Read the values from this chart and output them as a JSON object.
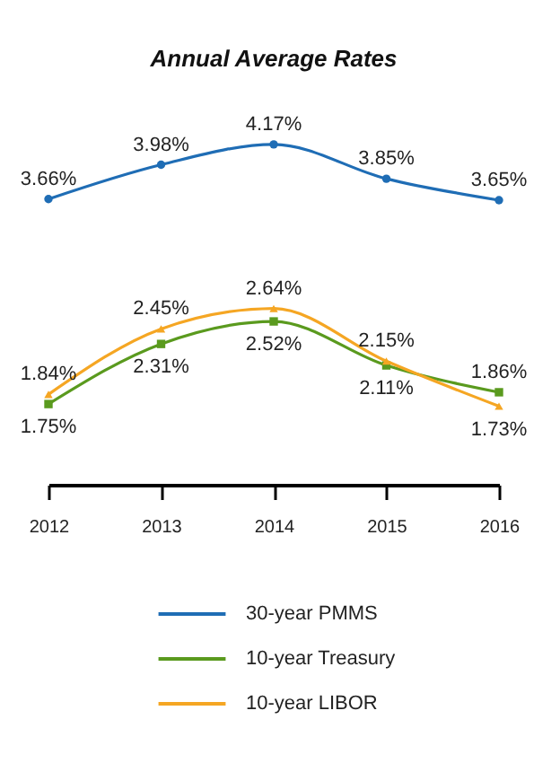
{
  "chart_data": {
    "type": "line",
    "title": "Annual Average Rates",
    "categories": [
      "2012",
      "2013",
      "2014",
      "2015",
      "2016"
    ],
    "series": [
      {
        "name": "30-year PMMS",
        "color": "#1f6db5",
        "marker": "circle",
        "values": [
          3.66,
          3.98,
          4.17,
          3.85,
          3.65
        ],
        "value_labels": [
          "3.66%",
          "3.98%",
          "4.17%",
          "3.85%",
          "3.65%"
        ]
      },
      {
        "name": "10-year Treasury",
        "color": "#5a9a1e",
        "marker": "square",
        "values": [
          1.75,
          2.31,
          2.52,
          2.11,
          1.86
        ],
        "value_labels": [
          "1.75%",
          "2.31%",
          "2.52%",
          "2.11%",
          "1.86%"
        ]
      },
      {
        "name": "10-year LIBOR",
        "color": "#f5a623",
        "marker": "triangle",
        "values": [
          1.84,
          2.45,
          2.64,
          2.15,
          1.73
        ],
        "value_labels": [
          "1.84%",
          "2.45%",
          "2.64%",
          "2.15%",
          "1.73%"
        ]
      }
    ],
    "legend": "bottom",
    "grid": false,
    "line_style": "solid"
  }
}
